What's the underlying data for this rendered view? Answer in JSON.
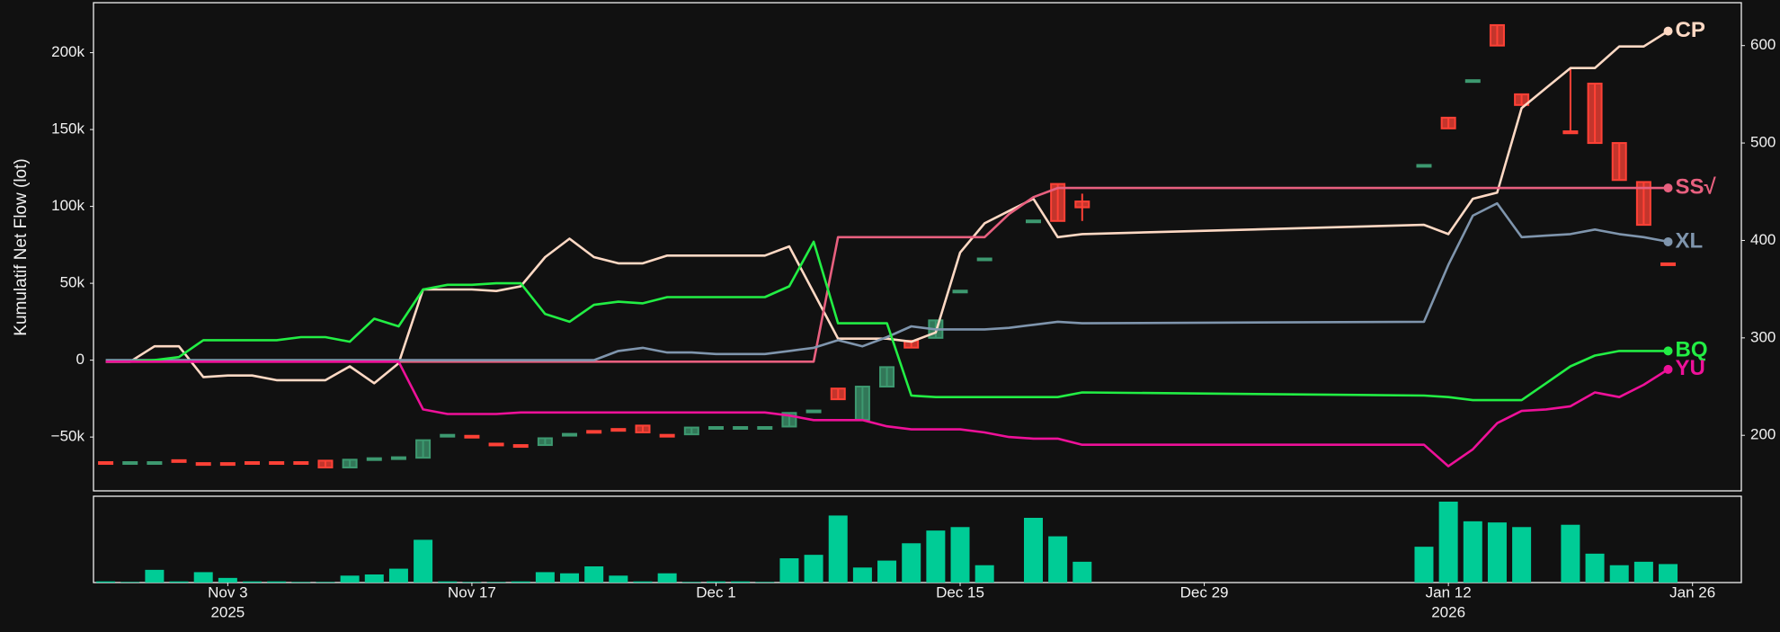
{
  "chart_data": {
    "type": "line",
    "ylabel": "Kumulatif Net Flow (lot)",
    "x": [
      "2025-10-27",
      "2025-10-28",
      "2025-10-29",
      "2025-10-30",
      "2025-10-31",
      "2025-11-03",
      "2025-11-04",
      "2025-11-05",
      "2025-11-06",
      "2025-11-07",
      "2025-11-10",
      "2025-11-11",
      "2025-11-12",
      "2025-11-13",
      "2025-11-14",
      "2025-11-17",
      "2025-11-18",
      "2025-11-19",
      "2025-11-20",
      "2025-11-21",
      "2025-11-24",
      "2025-11-25",
      "2025-11-26",
      "2025-11-27",
      "2025-11-28",
      "2025-12-01",
      "2025-12-02",
      "2025-12-03",
      "2025-12-04",
      "2025-12-05",
      "2025-12-08",
      "2025-12-09",
      "2025-12-10",
      "2025-12-11",
      "2025-12-12",
      "2025-12-15",
      "2025-12-16",
      "2025-12-17",
      "2025-12-18",
      "2025-12-19",
      "2025-12-22",
      "2026-01-09",
      "2026-01-12",
      "2026-01-13",
      "2026-01-14",
      "2026-01-15",
      "2026-01-16",
      "2026-01-19",
      "2026-01-20",
      "2026-01-21",
      "2026-01-22",
      "2026-01-23"
    ],
    "xlim": [
      "2025-10-24T12:00:00Z",
      "2026-01-28T00:00:00Z"
    ],
    "xticks": [
      {
        "value": "2025-11-03",
        "label": "Nov 3"
      },
      {
        "value": "2025-11-17",
        "label": "Nov 17"
      },
      {
        "value": "2025-12-01",
        "label": "Dec 1"
      },
      {
        "value": "2025-12-15",
        "label": "Dec 15"
      },
      {
        "value": "2025-12-29",
        "label": "Dec 29"
      },
      {
        "value": "2026-01-12",
        "label": "Jan 12"
      },
      {
        "value": "2026-01-26",
        "label": "Jan 26"
      }
    ],
    "xtick_years": [
      {
        "value": "2025-11-03",
        "label": "2025"
      },
      {
        "value": "2026-01-12",
        "label": "2026"
      }
    ],
    "ylim": [
      -85000,
      232500
    ],
    "yticks": [
      {
        "value": -50000,
        "label": "−50k"
      },
      0,
      {
        "value": 50000,
        "label": "50k"
      },
      {
        "value": 100000,
        "label": "100k"
      },
      {
        "value": 150000,
        "label": "150k"
      },
      {
        "value": 200000,
        "label": "200k"
      }
    ],
    "y2lim": [
      143,
      644
    ],
    "y2ticks": [
      200,
      300,
      400,
      500,
      600
    ],
    "series": [
      {
        "name": "CP",
        "color": "#ffd9c4",
        "values": [
          -1000,
          -1000,
          9000,
          9000,
          -11000,
          -10000,
          -10000,
          -13000,
          -13000,
          -13000,
          -4000,
          -15000,
          -2000,
          46000,
          46000,
          46000,
          45000,
          48000,
          67000,
          79000,
          67000,
          63000,
          63000,
          68000,
          68000,
          68000,
          68000,
          68000,
          74000,
          44000,
          14000,
          14000,
          14000,
          12000,
          18000,
          70000,
          89000,
          97000,
          105000,
          80000,
          82000,
          88000,
          82000,
          105000,
          109000,
          164000,
          177000,
          190000,
          190000,
          204000,
          204000,
          214000
        ]
      },
      {
        "name": "SS√",
        "color": "#e8607f",
        "values": [
          -1000,
          -1000,
          -1000,
          -1000,
          -1000,
          -1000,
          -1000,
          -1000,
          -1000,
          -1000,
          -1000,
          -1000,
          -1000,
          -1000,
          -1000,
          -1000,
          -1000,
          -1000,
          -1000,
          -1000,
          -1000,
          -1000,
          -1000,
          -1000,
          -1000,
          -1000,
          -1000,
          -1000,
          -1000,
          -1000,
          80000,
          80000,
          80000,
          80000,
          80000,
          80000,
          80000,
          95000,
          106000,
          112000,
          112000,
          112000,
          112000,
          112000,
          112000,
          112000,
          112000,
          112000,
          112000,
          112000,
          112000,
          112000
        ]
      },
      {
        "name": "XL",
        "color": "#7f95ad",
        "values": [
          0,
          0,
          0,
          0,
          0,
          0,
          0,
          0,
          0,
          0,
          0,
          0,
          0,
          0,
          0,
          0,
          0,
          0,
          0,
          0,
          0,
          6000,
          8000,
          5000,
          5000,
          4000,
          4000,
          4000,
          6000,
          8000,
          13000,
          9000,
          15000,
          22000,
          20000,
          20000,
          20000,
          21000,
          23000,
          25000,
          24000,
          25000,
          62000,
          94000,
          102000,
          80000,
          81000,
          82000,
          85000,
          82000,
          80000,
          77000
        ]
      },
      {
        "name": "BQ",
        "color": "#22ee44",
        "values": [
          -1000,
          -1000,
          0,
          2000,
          13000,
          13000,
          13000,
          13000,
          15000,
          15000,
          12000,
          27000,
          22000,
          46000,
          49000,
          49000,
          50000,
          50000,
          30000,
          25000,
          36000,
          38000,
          37000,
          41000,
          41000,
          41000,
          41000,
          41000,
          48000,
          77000,
          24000,
          24000,
          24000,
          -23000,
          -24000,
          -24000,
          -24000,
          -24000,
          -24000,
          -24000,
          -21000,
          -23000,
          -24000,
          -26000,
          -26000,
          -26000,
          -15000,
          -4000,
          3000,
          6000,
          6000,
          6000
        ]
      },
      {
        "name": "YU",
        "color": "#ee1199",
        "values": [
          -1000,
          -1000,
          -1000,
          -1000,
          -1000,
          -1000,
          -1000,
          -1000,
          -1000,
          -1000,
          -1000,
          -1000,
          -1000,
          -32000,
          -35000,
          -35000,
          -35000,
          -34000,
          -34000,
          -34000,
          -34000,
          -34000,
          -34000,
          -34000,
          -34000,
          -34000,
          -34000,
          -34000,
          -36000,
          -39000,
          -39000,
          -39000,
          -43000,
          -45000,
          -45000,
          -45000,
          -47000,
          -50000,
          -51000,
          -51000,
          -55000,
          -55000,
          -69000,
          -58000,
          -41000,
          -33000,
          -32000,
          -30000,
          -21000,
          -24000,
          -16000,
          -6000
        ]
      }
    ],
    "candles": {
      "type": "candlestick",
      "axis": "y2",
      "up_color": "#3d9970",
      "down_color": "#ff4136",
      "open": [
        172.5,
        172,
        172,
        174.5,
        171.5,
        171.5,
        172.5,
        172.5,
        172.5,
        174,
        167,
        175.5,
        176.5,
        177,
        199.5,
        199.5,
        191.5,
        190,
        190,
        200.5,
        204.5,
        206.5,
        210,
        200.5,
        201,
        207.5,
        207.5,
        207.5,
        209,
        224.5,
        248,
        216,
        250,
        297,
        300,
        347.5,
        380.5,
        null,
        419.5,
        458,
        440,
        476.5,
        526,
        563.5,
        621,
        550,
        null,
        512,
        561,
        500,
        460,
        376.5
      ],
      "high": [
        172.5,
        172.5,
        172.5,
        174.5,
        171.5,
        171.5,
        172.5,
        172.5,
        172.5,
        174,
        175,
        176.5,
        177.5,
        195,
        200.5,
        199.5,
        191.5,
        190,
        197,
        201.5,
        204.5,
        206.5,
        210,
        200.5,
        208,
        208.5,
        208.5,
        208.5,
        223,
        225.5,
        248,
        250,
        270,
        297,
        318,
        348.5,
        381.5,
        null,
        420.5,
        458,
        448,
        477.5,
        526,
        564.5,
        621,
        550,
        null,
        577,
        561,
        500,
        460,
        376.5
      ],
      "low": [
        172,
        172,
        172,
        174,
        171,
        171,
        172,
        172,
        172,
        167,
        167,
        175.5,
        176.5,
        177,
        199.5,
        198.5,
        190.5,
        189,
        190,
        200.5,
        203.5,
        205.5,
        203,
        199.5,
        201,
        207.5,
        207.5,
        207.5,
        209,
        224.5,
        237,
        216,
        250,
        290,
        300,
        347.5,
        380.5,
        null,
        419.5,
        420,
        420,
        476.5,
        515,
        563.5,
        600,
        539,
        null,
        510,
        500,
        462,
        416,
        375.5
      ],
      "close": [
        172,
        172.5,
        172.5,
        174,
        171,
        171,
        172,
        172,
        172,
        167,
        175,
        176.5,
        177.5,
        195,
        200.5,
        198.5,
        190.5,
        189,
        197,
        201.5,
        203.5,
        205.5,
        203,
        199.5,
        208,
        208.5,
        208.5,
        208.5,
        223,
        225.5,
        237,
        250,
        270,
        290,
        318,
        348.5,
        381.5,
        null,
        420.5,
        420,
        434,
        477.5,
        515,
        564.5,
        600,
        539,
        null,
        510,
        500,
        462,
        416,
        375.5
      ]
    },
    "volume": {
      "type": "bar",
      "color": "#00cc96",
      "values": [
        1,
        0.5,
        11,
        1,
        9,
        4,
        1,
        1,
        0.5,
        0.5,
        6,
        7,
        12,
        37,
        1,
        0.5,
        0.5,
        1,
        9,
        8,
        14,
        6,
        1,
        8,
        0.5,
        1,
        1,
        0.5,
        21,
        24,
        58,
        13,
        19,
        34,
        45,
        48,
        15,
        0,
        56,
        40,
        18,
        31,
        70,
        53,
        52,
        48,
        0,
        50,
        25,
        15,
        18,
        16
      ]
    }
  }
}
